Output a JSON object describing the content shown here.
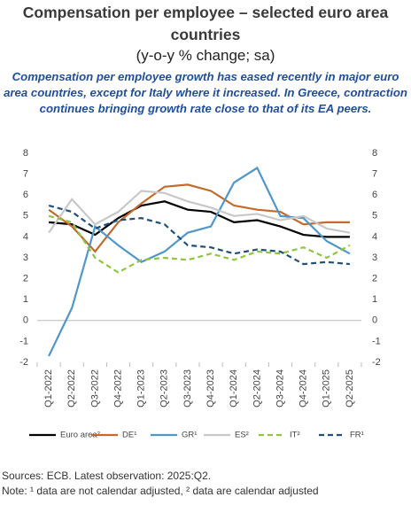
{
  "chart_data": {
    "type": "line",
    "title": "Compensation per employee – selected euro area countries",
    "unit_label": "(y-o-y % change; sa)",
    "subtitle": "Compensation per employee growth has eased recently in major euro area countries, except for Italy where it increased. In Greece, contraction continues bringing growth rate close to that of its EA peers.",
    "categories": [
      "Q1-2022",
      "Q2-2022",
      "Q3-2022",
      "Q4-2022",
      "Q1-2023",
      "Q2-2023",
      "Q3-2023",
      "Q4-2023",
      "Q1-2024",
      "Q2-2024",
      "Q3-2024",
      "Q4-2024",
      "Q1-2025",
      "Q2-2025"
    ],
    "series": [
      {
        "name": "Euro area²",
        "color": "#000000",
        "dashed": false,
        "values": [
          4.7,
          4.6,
          4.1,
          4.9,
          5.5,
          5.7,
          5.3,
          5.2,
          4.7,
          4.8,
          4.5,
          4.1,
          4.0,
          4.0
        ]
      },
      {
        "name": "DE¹",
        "color": "#c5692c",
        "dashed": false,
        "values": [
          5.3,
          4.5,
          3.3,
          4.7,
          5.6,
          6.4,
          6.5,
          6.2,
          5.5,
          5.3,
          5.2,
          4.6,
          4.7,
          4.7
        ]
      },
      {
        "name": "GR¹",
        "color": "#4f97c9",
        "dashed": false,
        "values": [
          -1.7,
          0.6,
          4.5,
          3.6,
          2.8,
          3.3,
          4.2,
          4.5,
          6.6,
          7.3,
          5.0,
          4.9,
          3.8,
          3.2
        ]
      },
      {
        "name": "ES²",
        "color": "#c8c8c8",
        "dashed": false,
        "values": [
          4.2,
          5.8,
          4.6,
          5.2,
          6.2,
          6.1,
          5.7,
          5.4,
          5.0,
          5.1,
          4.8,
          5.0,
          4.4,
          4.2
        ]
      },
      {
        "name": "IT²",
        "color": "#8ec63f",
        "dashed": true,
        "values": [
          5.0,
          4.7,
          3.0,
          2.3,
          2.9,
          3.0,
          2.9,
          3.2,
          2.9,
          3.3,
          3.2,
          3.5,
          3.0,
          3.6
        ]
      },
      {
        "name": "FR¹",
        "color": "#1f4e79",
        "dashed": true,
        "values": [
          5.5,
          5.2,
          4.4,
          4.8,
          4.9,
          4.6,
          3.6,
          3.5,
          3.2,
          3.4,
          3.3,
          2.7,
          2.8,
          2.7
        ]
      }
    ],
    "ylim": [
      -2,
      8
    ],
    "yticks": [
      -2,
      -1,
      0,
      1,
      2,
      3,
      4,
      5,
      6,
      7,
      8
    ],
    "y2lim": [
      -2,
      8
    ],
    "y2ticks": [
      -2,
      -1,
      0,
      1,
      2,
      3,
      4,
      5,
      6,
      7,
      8
    ],
    "grid": false,
    "source": "Sources: ECB. Latest observation: 2025:Q2.",
    "note": "Note: ¹ data are not calendar adjusted, ² data  are calendar adjusted"
  }
}
